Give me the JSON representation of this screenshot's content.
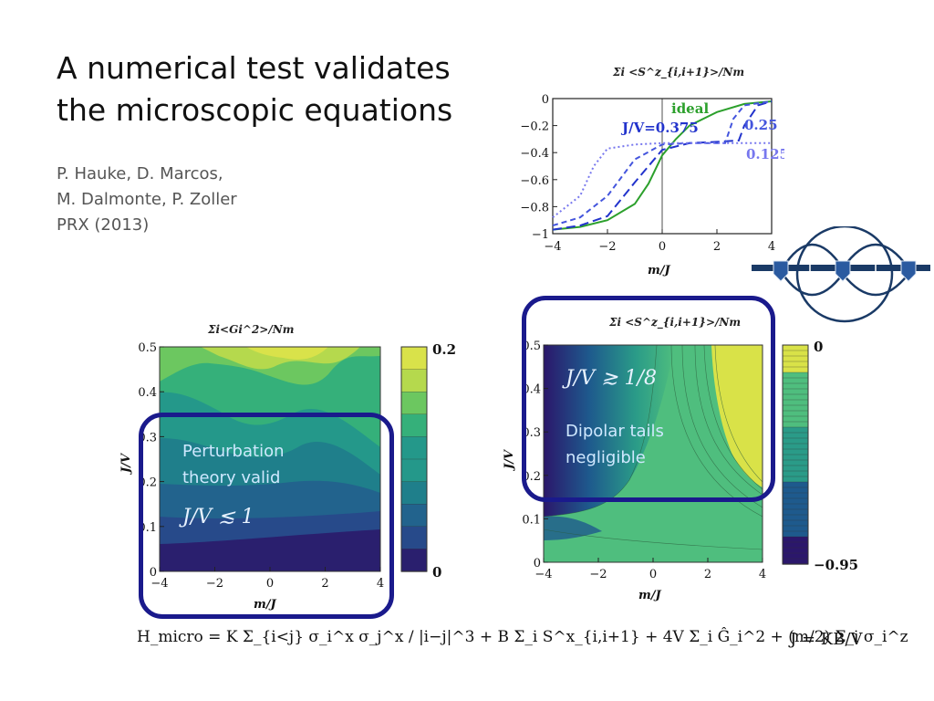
{
  "slide": {
    "title": "A numerical test validates\nthe microscopic equations",
    "authors": "P. Hauke, D. Marcos,\nM. Dalmonte, P. Zoller\nPRX (2013)"
  },
  "callouts": {
    "left": {
      "text": "Perturbation\ntheory valid",
      "math": "J/V ≲ 1"
    },
    "right": {
      "text": "Dipolar tails\nnegligible",
      "math": "J/V ≳ 1/8"
    }
  },
  "equation": {
    "hamiltonian": "H_micro = K Σ_{i<j} σ_i^x σ_j^x / |i−j|^3 + B Σ_i S^x_{i,i+1} + 4V Σ_i Ĝ_i^2 + (m/2) Σ_i σ_i^z",
    "coupling": "J = KB/V"
  },
  "chart_data": [
    {
      "type": "line",
      "title": "Σi <S^z_{i,i+1}>/Nm",
      "xlabel": "m/J",
      "ylabel": "",
      "xlim": [
        -4,
        4
      ],
      "ylim": [
        -1,
        0
      ],
      "x_ticks": [
        "−4",
        "−2",
        "0",
        "2",
        "4"
      ],
      "y_ticks": [
        "0",
        "−0.2",
        "−0.4",
        "−0.6",
        "−0.8",
        "−1"
      ],
      "annotations": [
        "ideal",
        "J/V=0.375",
        "0.25",
        "0.125"
      ],
      "series": [
        {
          "name": "ideal",
          "color": "#2ca02c",
          "style": "solid",
          "x": [
            -4,
            -3,
            -2,
            -1,
            -0.5,
            0,
            0.5,
            1,
            2,
            3,
            4
          ],
          "y": [
            -0.97,
            -0.95,
            -0.9,
            -0.78,
            -0.63,
            -0.42,
            -0.3,
            -0.2,
            -0.1,
            -0.04,
            -0.02
          ]
        },
        {
          "name": "J/V=0.375",
          "color": "#2233cc",
          "style": "long-dash",
          "x": [
            -4,
            -3,
            -2,
            -1,
            0,
            1,
            2,
            2.8,
            3,
            3.5,
            4
          ],
          "y": [
            -0.97,
            -0.94,
            -0.87,
            -0.62,
            -0.38,
            -0.33,
            -0.32,
            -0.31,
            -0.2,
            -0.05,
            -0.02
          ]
        },
        {
          "name": "0.25",
          "color": "#4455dd",
          "style": "dash",
          "x": [
            -4,
            -3,
            -2,
            -1,
            0,
            1,
            2.3,
            2.6,
            3,
            4
          ],
          "y": [
            -0.94,
            -0.88,
            -0.72,
            -0.45,
            -0.34,
            -0.33,
            -0.33,
            -0.15,
            -0.05,
            -0.02
          ]
        },
        {
          "name": "0.125",
          "color": "#7777ee",
          "style": "dot",
          "x": [
            -4,
            -3,
            -2.5,
            -2,
            -1,
            0,
            1,
            2,
            3,
            4
          ],
          "y": [
            -0.88,
            -0.72,
            -0.5,
            -0.37,
            -0.34,
            -0.33,
            -0.33,
            -0.33,
            -0.33,
            -0.33
          ]
        }
      ]
    },
    {
      "type": "heatmap",
      "title": "Σi<Gi^2>/Nm",
      "xlabel": "m/J",
      "ylabel": "J/V",
      "xlim": [
        -4,
        4
      ],
      "ylim": [
        0,
        0.5
      ],
      "x_ticks": [
        "−4",
        "−2",
        "0",
        "2",
        "4"
      ],
      "y_ticks": [
        "0",
        "0.1",
        "0.2",
        "0.3",
        "0.4",
        "0.5"
      ],
      "colorbar": {
        "min": 0,
        "max": 0.25,
        "labels": [
          "0.25",
          "0"
        ]
      },
      "colors": [
        "#2a1f6e",
        "#274a8a",
        "#22638d",
        "#1f7f8b",
        "#24988a",
        "#35b07a",
        "#6cc760",
        "#b5d94d",
        "#d9e24a"
      ]
    },
    {
      "type": "heatmap",
      "title": "Σi <S^z_{i,i+1}>/Nm",
      "xlabel": "m/J",
      "ylabel": "J/V",
      "xlim": [
        -4,
        4
      ],
      "ylim": [
        0,
        0.5
      ],
      "x_ticks": [
        "−4",
        "−2",
        "0",
        "2",
        "4"
      ],
      "y_ticks": [
        "0",
        "0.1",
        "0.2",
        "0.3",
        "0.4",
        "0.5"
      ],
      "colorbar": {
        "min": -0.95,
        "max": 0,
        "labels": [
          "0",
          "−0.95"
        ]
      },
      "colors": [
        "#2b176b",
        "#1e5a8d",
        "#2a9b88",
        "#4fbe7e",
        "#d9e248"
      ]
    }
  ]
}
